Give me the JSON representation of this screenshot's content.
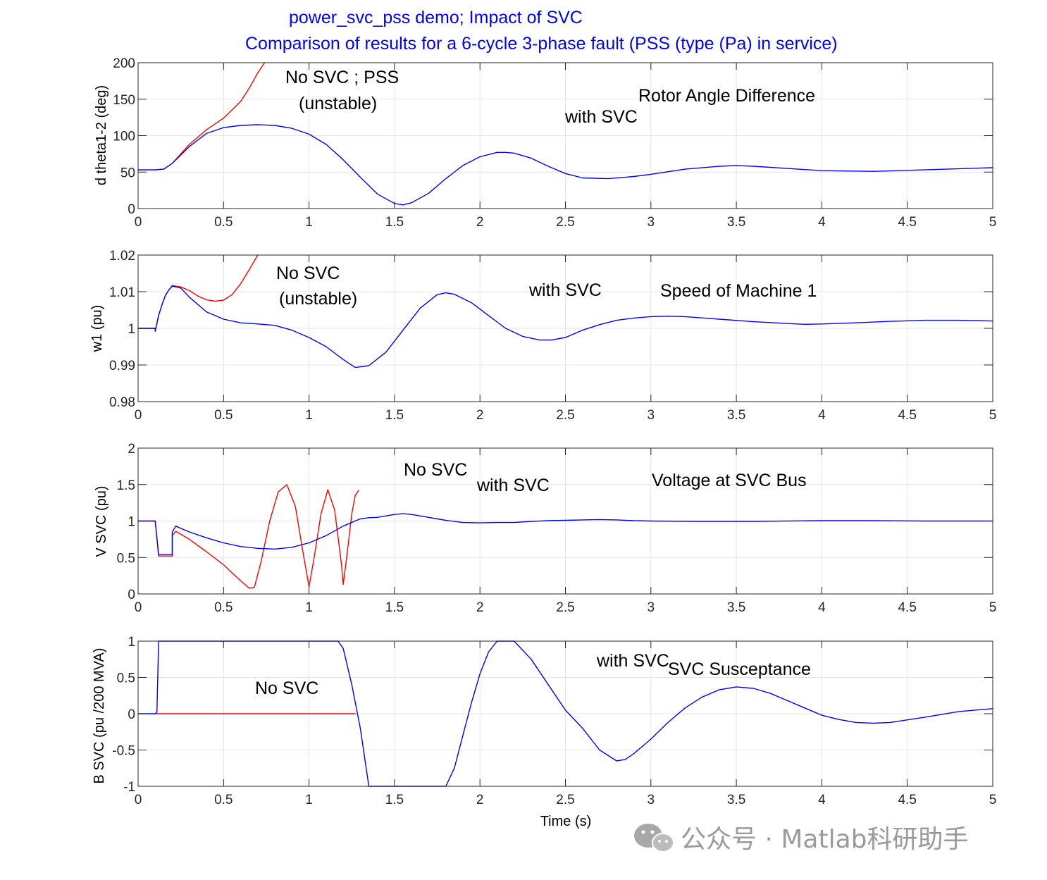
{
  "title_lines": [
    "power_svc_pss demo;  Impact of SVC",
    "Comparison of results for a 6-cycle 3-phase fault (PSS  (type (Pa) in service)"
  ],
  "xlabel": "Time (s)",
  "watermark": "公众号 · Matlab科研助手",
  "colors": {
    "with_svc": "#0000ff",
    "no_svc": "#ff0000",
    "title": "#0000ff",
    "grid": "#e6e6e6",
    "axis": "#262626"
  },
  "chart_data": [
    {
      "type": "line",
      "ylabel": "d theta1-2 (deg)",
      "xlim": [
        0,
        5
      ],
      "ylim": [
        0,
        200
      ],
      "xticks": [
        "0",
        "0.5",
        "1",
        "1.5",
        "2",
        "2.5",
        "3",
        "3.5",
        "4",
        "4.5",
        "5"
      ],
      "yticks": [
        "0",
        "50",
        "100",
        "150",
        "200"
      ],
      "ytick_values": [
        0,
        50,
        100,
        150,
        200
      ],
      "annotations": [
        "No SVC ;  PSS",
        "(unstable)",
        "Rotor Angle Difference",
        "with SVC"
      ],
      "series": [
        {
          "name": "with SVC",
          "color": "#0000ff",
          "x": [
            0,
            0.1,
            0.15,
            0.2,
            0.3,
            0.4,
            0.5,
            0.6,
            0.7,
            0.8,
            0.9,
            1.0,
            1.1,
            1.2,
            1.3,
            1.4,
            1.5,
            1.55,
            1.6,
            1.7,
            1.8,
            1.9,
            2.0,
            2.1,
            2.15,
            2.2,
            2.3,
            2.4,
            2.5,
            2.6,
            2.75,
            2.9,
            3.0,
            3.2,
            3.4,
            3.5,
            3.6,
            3.8,
            4.0,
            4.3,
            4.6,
            5.0
          ],
          "y": [
            53,
            53,
            54,
            62,
            85,
            103,
            111,
            114,
            115,
            114,
            110,
            102,
            88,
            67,
            43,
            20,
            7,
            5,
            8,
            21,
            41,
            59,
            71,
            77,
            77,
            76,
            69,
            58,
            48,
            42,
            41,
            44,
            47,
            54,
            58,
            59,
            58,
            55,
            52,
            51,
            53,
            56
          ]
        },
        {
          "name": "No SVC",
          "color": "#ff0000",
          "x": [
            0,
            0.1,
            0.15,
            0.2,
            0.3,
            0.4,
            0.5,
            0.6,
            0.65,
            0.7,
            0.74
          ],
          "y": [
            53,
            53,
            54,
            62,
            88,
            108,
            124,
            147,
            165,
            186,
            200
          ]
        }
      ]
    },
    {
      "type": "line",
      "ylabel": "w1 (pu)",
      "xlim": [
        0,
        5
      ],
      "ylim": [
        0.98,
        1.02
      ],
      "xticks": [
        "0",
        "0.5",
        "1",
        "1.5",
        "2",
        "2.5",
        "3",
        "3.5",
        "4",
        "4.5",
        "5"
      ],
      "yticks": [
        "0.98",
        "0.99",
        "1",
        "1.01",
        "1.02"
      ],
      "ytick_values": [
        0.98,
        0.99,
        1.0,
        1.01,
        1.02
      ],
      "annotations": [
        "No SVC",
        "(unstable)",
        "with SVC",
        "Speed of Machine 1"
      ],
      "series": [
        {
          "name": "with SVC",
          "color": "#0000ff",
          "x": [
            0,
            0.1,
            0.1,
            0.12,
            0.14,
            0.16,
            0.18,
            0.2,
            0.25,
            0.3,
            0.4,
            0.5,
            0.6,
            0.7,
            0.8,
            0.9,
            1.0,
            1.1,
            1.2,
            1.27,
            1.35,
            1.45,
            1.55,
            1.65,
            1.75,
            1.8,
            1.85,
            1.95,
            2.05,
            2.15,
            2.25,
            2.35,
            2.42,
            2.5,
            2.6,
            2.7,
            2.8,
            2.9,
            3.0,
            3.1,
            3.2,
            3.4,
            3.6,
            3.8,
            3.9,
            4.0,
            4.2,
            4.4,
            4.6,
            4.8,
            5.0
          ],
          "y": [
            1.0,
            1.0,
            0.9992,
            1.0035,
            1.0065,
            1.009,
            1.0105,
            1.0115,
            1.011,
            1.0085,
            1.0045,
            1.0025,
            1.0015,
            1.0012,
            1.0008,
            0.9995,
            0.9975,
            0.995,
            0.9915,
            0.9893,
            0.9898,
            0.9935,
            0.9995,
            1.0055,
            1.0092,
            1.0097,
            1.0093,
            1.007,
            1.0035,
            1.0,
            0.9978,
            0.9968,
            0.9968,
            0.9975,
            0.9995,
            1.001,
            1.0022,
            1.0028,
            1.0032,
            1.0033,
            1.0032,
            1.0025,
            1.0018,
            1.0013,
            1.0011,
            1.0012,
            1.0015,
            1.0019,
            1.0022,
            1.0022,
            1.002
          ]
        },
        {
          "name": "No SVC",
          "color": "#ff0000",
          "x": [
            0,
            0.1,
            0.1,
            0.12,
            0.14,
            0.16,
            0.18,
            0.2,
            0.25,
            0.3,
            0.35,
            0.4,
            0.45,
            0.5,
            0.55,
            0.6,
            0.65,
            0.7
          ],
          "y": [
            1.0,
            1.0,
            0.9992,
            1.0035,
            1.0065,
            1.009,
            1.0105,
            1.0117,
            1.0113,
            1.0103,
            1.0088,
            1.0078,
            1.0074,
            1.0077,
            1.0092,
            1.0122,
            1.016,
            1.02
          ]
        }
      ]
    },
    {
      "type": "line",
      "ylabel": "V SVC (pu)",
      "xlim": [
        0,
        5
      ],
      "ylim": [
        0,
        2
      ],
      "xticks": [
        "0",
        "0.5",
        "1",
        "1.5",
        "2",
        "2.5",
        "3",
        "3.5",
        "4",
        "4.5",
        "5"
      ],
      "yticks": [
        "0",
        "0.5",
        "1",
        "1.5",
        "2"
      ],
      "ytick_values": [
        0,
        0.5,
        1,
        1.5,
        2
      ],
      "annotations": [
        "No SVC",
        "with SVC",
        "Voltage at  SVC Bus"
      ],
      "series": [
        {
          "name": "with SVC",
          "color": "#0000ff",
          "x": [
            0,
            0.1,
            0.12,
            0.2,
            0.2,
            0.22,
            0.25,
            0.3,
            0.4,
            0.5,
            0.6,
            0.7,
            0.8,
            0.9,
            1.0,
            1.1,
            1.2,
            1.3,
            1.35,
            1.4,
            1.5,
            1.55,
            1.6,
            1.7,
            1.8,
            1.9,
            2.0,
            2.1,
            2.2,
            2.3,
            2.4,
            2.5,
            2.6,
            2.7,
            2.8,
            2.9,
            3.0,
            3.3,
            3.6,
            4.0,
            4.3,
            4.6,
            5.0
          ],
          "y": [
            1.0,
            1.0,
            0.54,
            0.54,
            0.85,
            0.93,
            0.9,
            0.85,
            0.77,
            0.7,
            0.65,
            0.625,
            0.615,
            0.64,
            0.7,
            0.8,
            0.93,
            1.03,
            1.045,
            1.05,
            1.09,
            1.1,
            1.09,
            1.05,
            1.01,
            0.98,
            0.975,
            0.98,
            0.98,
            0.995,
            1.005,
            1.01,
            1.015,
            1.02,
            1.015,
            1.005,
            1.0,
            0.995,
            0.995,
            1.005,
            1.005,
            1.0,
            1.0
          ]
        },
        {
          "name": "No SVC",
          "color": "#ff0000",
          "x": [
            0,
            0.1,
            0.12,
            0.2,
            0.2,
            0.22,
            0.3,
            0.4,
            0.5,
            0.6,
            0.65,
            0.68,
            0.72,
            0.77,
            0.82,
            0.87,
            0.92,
            0.97,
            1.0,
            1.03,
            1.07,
            1.11,
            1.15,
            1.19,
            1.2,
            1.22,
            1.25,
            1.27,
            1.29
          ],
          "y": [
            1.0,
            1.0,
            0.52,
            0.52,
            0.8,
            0.86,
            0.75,
            0.58,
            0.4,
            0.18,
            0.08,
            0.09,
            0.45,
            1.0,
            1.4,
            1.5,
            1.2,
            0.5,
            0.1,
            0.5,
            1.1,
            1.43,
            1.15,
            0.4,
            0.13,
            0.5,
            1.1,
            1.35,
            1.42
          ]
        }
      ]
    },
    {
      "type": "line",
      "ylabel": "B SVC (pu /200 MVA)",
      "xlim": [
        0,
        5
      ],
      "ylim": [
        -1,
        1
      ],
      "xticks": [
        "0",
        "0.5",
        "1",
        "1.5",
        "2",
        "2.5",
        "3",
        "3.5",
        "4",
        "4.5",
        "5"
      ],
      "yticks": [
        "-1",
        "-0.5",
        "0",
        "0.5",
        "1"
      ],
      "ytick_values": [
        -1,
        -0.5,
        0,
        0.5,
        1
      ],
      "annotations": [
        "No SVC",
        "with SVC",
        "SVC Susceptance"
      ],
      "series": [
        {
          "name": "with SVC",
          "color": "#0000ff",
          "x": [
            0,
            0.1,
            0.11,
            0.12,
            1.17,
            1.2,
            1.25,
            1.3,
            1.35,
            1.8,
            1.85,
            1.9,
            1.95,
            2.0,
            2.05,
            2.1,
            2.12,
            2.2,
            2.22,
            2.3,
            2.4,
            2.5,
            2.6,
            2.7,
            2.8,
            2.85,
            2.9,
            3.0,
            3.1,
            3.2,
            3.3,
            3.4,
            3.5,
            3.6,
            3.7,
            3.8,
            3.9,
            4.0,
            4.1,
            4.2,
            4.3,
            4.4,
            4.6,
            4.8,
            5.0
          ],
          "y": [
            0,
            0,
            0.02,
            1.0,
            1.0,
            0.9,
            0.4,
            -0.2,
            -1.0,
            -1.0,
            -0.75,
            -0.3,
            0.15,
            0.55,
            0.85,
            1.0,
            1.0,
            1.0,
            0.95,
            0.75,
            0.4,
            0.05,
            -0.2,
            -0.5,
            -0.65,
            -0.63,
            -0.55,
            -0.35,
            -0.12,
            0.08,
            0.23,
            0.33,
            0.37,
            0.35,
            0.28,
            0.18,
            0.08,
            -0.02,
            -0.08,
            -0.12,
            -0.13,
            -0.12,
            -0.05,
            0.03,
            0.07
          ]
        },
        {
          "name": "No SVC",
          "color": "#ff0000",
          "x": [
            0.1,
            1.27
          ],
          "y": [
            0,
            0
          ]
        }
      ]
    }
  ]
}
